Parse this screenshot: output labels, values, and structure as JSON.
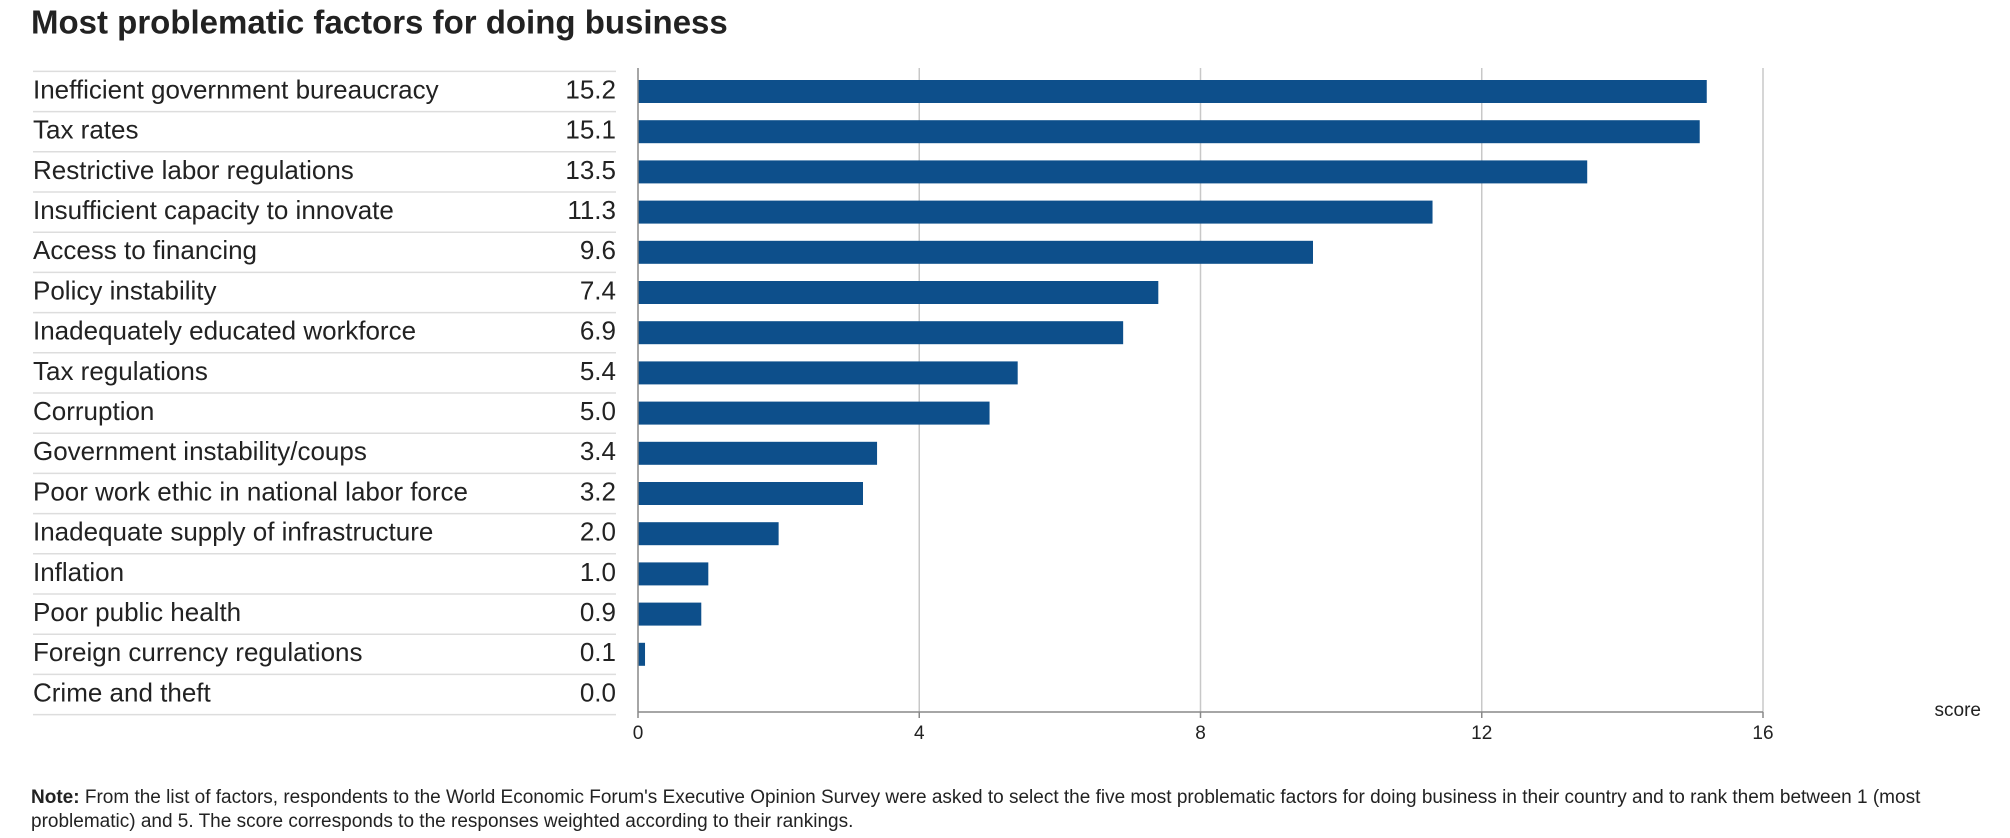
{
  "chart_data": {
    "type": "bar",
    "orientation": "horizontal",
    "title": "Most problematic factors for doing business",
    "categories": [
      "Inefficient government bureaucracy",
      "Tax rates",
      "Restrictive labor regulations",
      "Insufficient capacity to innovate",
      "Access to financing",
      "Policy instability",
      "Inadequately educated workforce",
      "Tax regulations",
      "Corruption",
      "Government instability/coups",
      "Poor work ethic in national labor force",
      "Inadequate supply of infrastructure",
      "Inflation",
      "Poor public health",
      "Foreign currency regulations",
      "Crime and theft"
    ],
    "values": [
      15.2,
      15.1,
      13.5,
      11.3,
      9.6,
      7.4,
      6.9,
      5.4,
      5.0,
      3.4,
      3.2,
      2.0,
      1.0,
      0.9,
      0.1,
      0.0
    ],
    "value_labels": [
      "15.2",
      "15.1",
      "13.5",
      "11.3",
      "9.6",
      "7.4",
      "6.9",
      "5.4",
      "5.0",
      "3.4",
      "3.2",
      "2.0",
      "1.0",
      "0.9",
      "0.1",
      "0.0"
    ],
    "color": "#0d4f8b",
    "xlabel": "score",
    "xlim": [
      0,
      16
    ],
    "xticks": [
      0,
      4,
      8,
      12,
      16
    ],
    "grid": true,
    "note": {
      "label": "Note:",
      "text": "From the list of factors, respondents to the World Economic Forum's Executive Opinion Survey were asked to select the five most problematic factors for doing business in their country and to rank them between 1 (most problematic) and 5. The score corresponds to the responses weighted according to their rankings."
    }
  }
}
